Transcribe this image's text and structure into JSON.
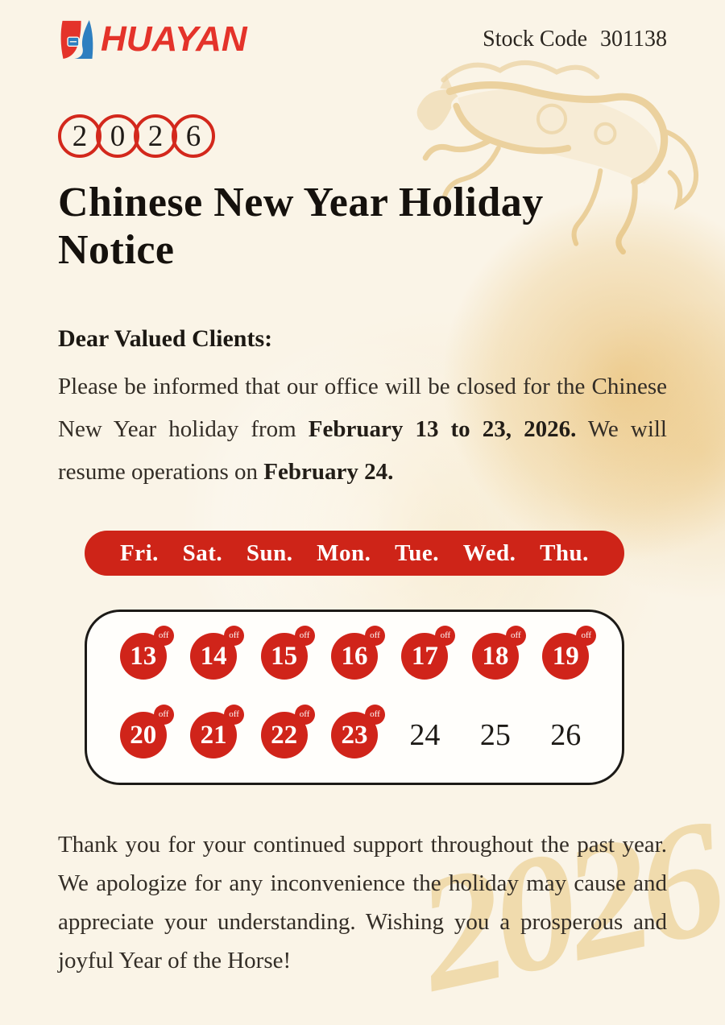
{
  "header": {
    "logo_text": "HUAYAN",
    "stock_code_label": "Stock Code",
    "stock_code_value": "301138"
  },
  "year_badge": {
    "digits": [
      "2",
      "0",
      "2",
      "6"
    ]
  },
  "title": "Chinese New Year Holiday Notice",
  "greeting": "Dear Valued Clients:",
  "notice_paragraph": {
    "text_1": "Please be informed that our office will be closed for the Chinese New Year holiday from ",
    "bold_1": "February 13 to 23, 2026.",
    "text_2": " We will resume operations on ",
    "bold_2": "February 24."
  },
  "calendar": {
    "weekdays": [
      "Fri.",
      "Sat.",
      "Sun.",
      "Mon.",
      "Tue.",
      "Wed.",
      "Thu."
    ],
    "off_label": "off",
    "days": [
      {
        "label": "13",
        "off": true
      },
      {
        "label": "14",
        "off": true
      },
      {
        "label": "15",
        "off": true
      },
      {
        "label": "16",
        "off": true
      },
      {
        "label": "17",
        "off": true
      },
      {
        "label": "18",
        "off": true
      },
      {
        "label": "19",
        "off": true
      },
      {
        "label": "20",
        "off": true
      },
      {
        "label": "21",
        "off": true
      },
      {
        "label": "22",
        "off": true
      },
      {
        "label": "23",
        "off": true
      },
      {
        "label": "24",
        "off": false
      },
      {
        "label": "25",
        "off": false
      },
      {
        "label": "26",
        "off": false
      }
    ]
  },
  "closing_paragraph": "Thank you for your continued support throughout the past year. We apologize for any inconvenience the holiday may cause and appreciate your understanding. Wishing you a prosperous and joyful Year of the Horse!",
  "watermark_year": "2026",
  "colors": {
    "brand_red": "#d0241a",
    "banner_red": "#ce2418",
    "logo_red": "#e4332a",
    "logo_blue": "#2e7fc0",
    "gold": "#dcae55",
    "background_cream": "#faf4e7"
  }
}
